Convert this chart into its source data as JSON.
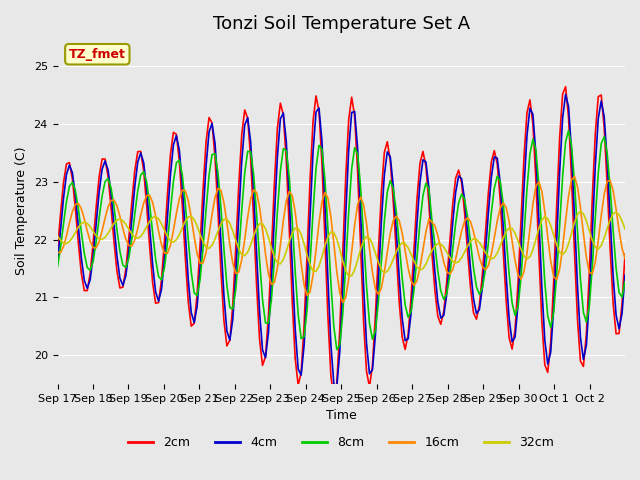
{
  "title": "Tonzi Soil Temperature Set A",
  "xlabel": "Time",
  "ylabel": "Soil Temperature (C)",
  "ylim": [
    19.5,
    25.5
  ],
  "background_color": "#e8e8e8",
  "legend_label": "TZ_fmet",
  "series_colors": [
    "#ff0000",
    "#0000cc",
    "#00cc00",
    "#ff8800",
    "#cccc00"
  ],
  "series_labels": [
    "2cm",
    "4cm",
    "8cm",
    "16cm",
    "32cm"
  ],
  "x_tick_labels": [
    "Sep 17",
    "Sep 18",
    "Sep 19",
    "Sep 20",
    "Sep 21",
    "Sep 22",
    "Sep 23",
    "Sep 24",
    "Sep 25",
    "Sep 26",
    "Sep 27",
    "Sep 28",
    "Sep 29",
    "Sep 30",
    "Oct 1",
    "Oct 2"
  ],
  "title_fontsize": 13,
  "axis_fontsize": 9,
  "tick_fontsize": 8,
  "n_days": 16,
  "n_per_day": 12
}
